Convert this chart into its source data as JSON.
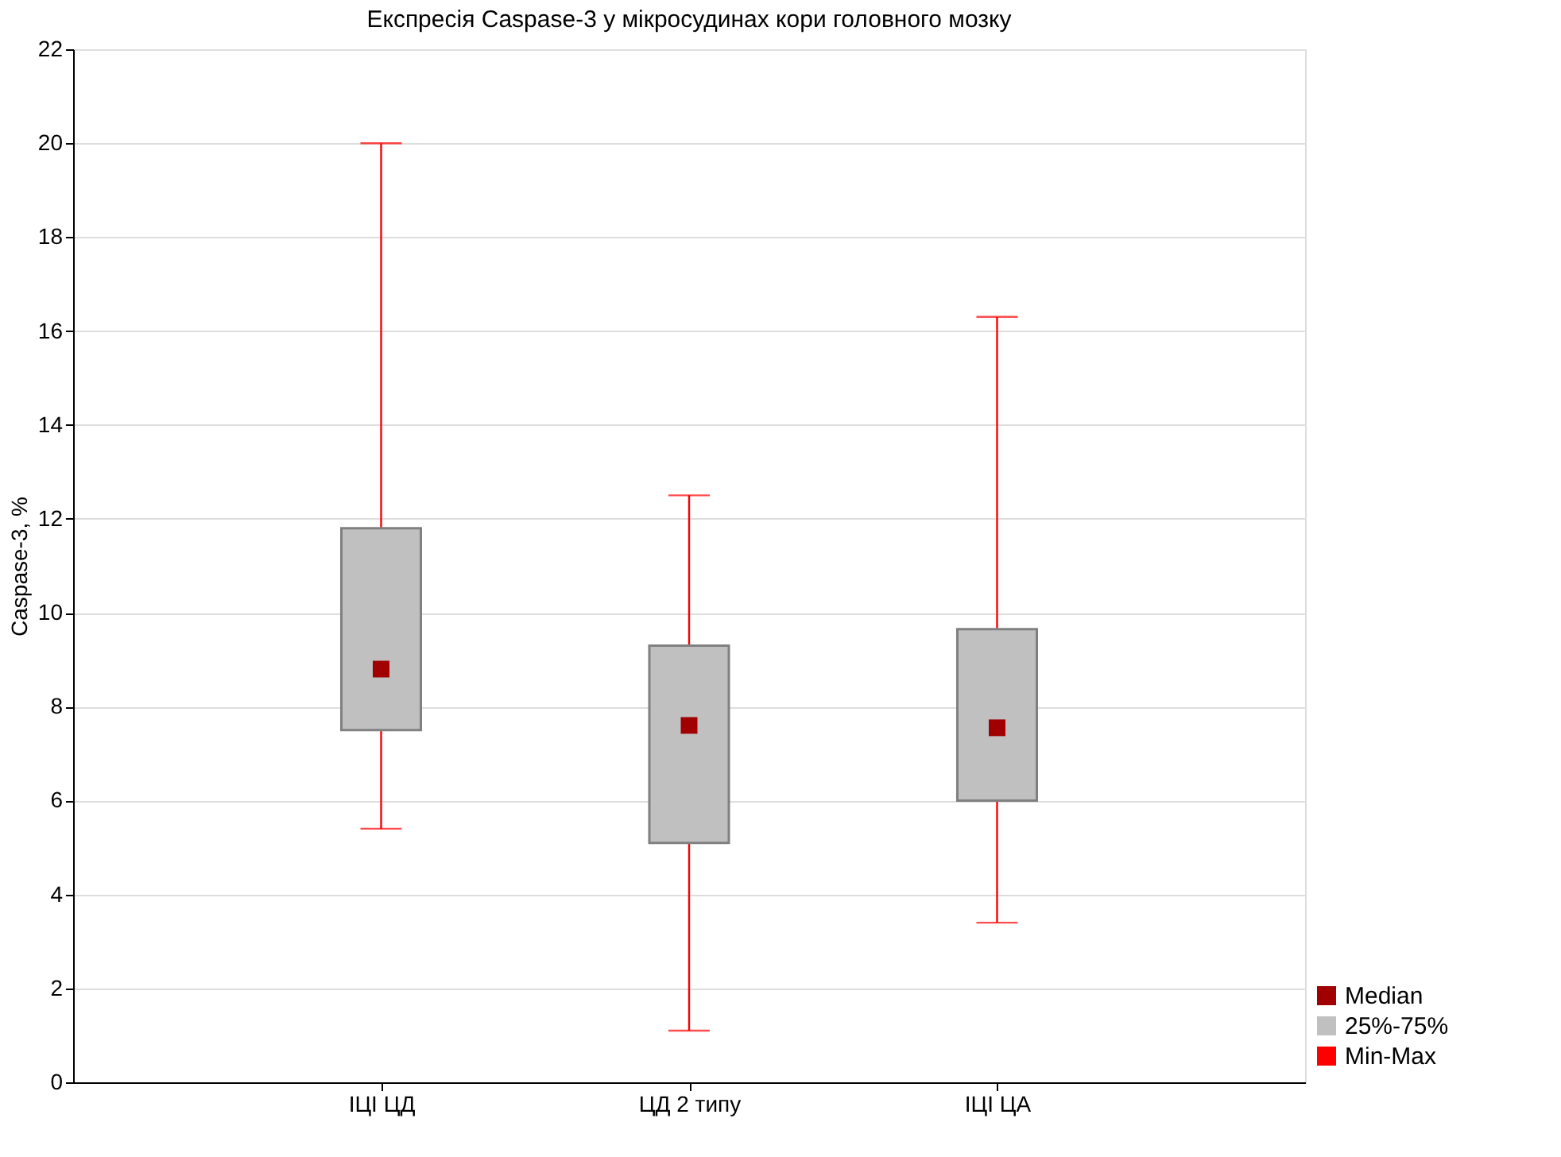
{
  "chart_data": {
    "type": "box",
    "title": "Експресія Caspase-3 у мікросудинах кори головного мозку",
    "ylabel": "Caspase-3, %",
    "categories": [
      "ІЦІ ЦД",
      "ЦД 2 типу",
      "ІЦІ ЦА"
    ],
    "series": [
      {
        "name": "Median",
        "type": "scatter",
        "marker": "square",
        "color": "#a00000",
        "values": [
          8.8,
          7.6,
          7.55
        ]
      },
      {
        "name": "25%-75%",
        "type": "box",
        "color": "#c0c0c0",
        "boxes": [
          {
            "low": 5.4,
            "q1": 7.5,
            "q3": 11.8,
            "high": 20.0
          },
          {
            "low": 1.1,
            "q1": 5.1,
            "q3": 9.3,
            "high": 12.5
          },
          {
            "low": 3.4,
            "q1": 6.0,
            "q3": 9.65,
            "high": 16.3
          }
        ]
      },
      {
        "name": "Min-Max",
        "type": "box",
        "color": "#ff0000",
        "values": [
          null,
          null,
          null
        ]
      }
    ],
    "ylim": [
      0,
      22
    ],
    "yticks": [
      0,
      2,
      4,
      6,
      8,
      10,
      12,
      14,
      16,
      18,
      20,
      22
    ],
    "grid": "y",
    "legend": "bottom right"
  }
}
